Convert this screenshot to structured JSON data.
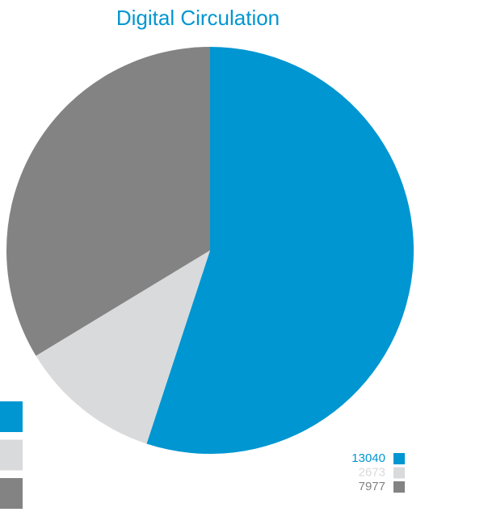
{
  "chart_data": {
    "type": "pie",
    "title": "Digital Circulation",
    "values": [
      13040,
      2673,
      7977
    ],
    "colors": [
      "#0096d1",
      "#d9dadc",
      "#838383"
    ]
  }
}
